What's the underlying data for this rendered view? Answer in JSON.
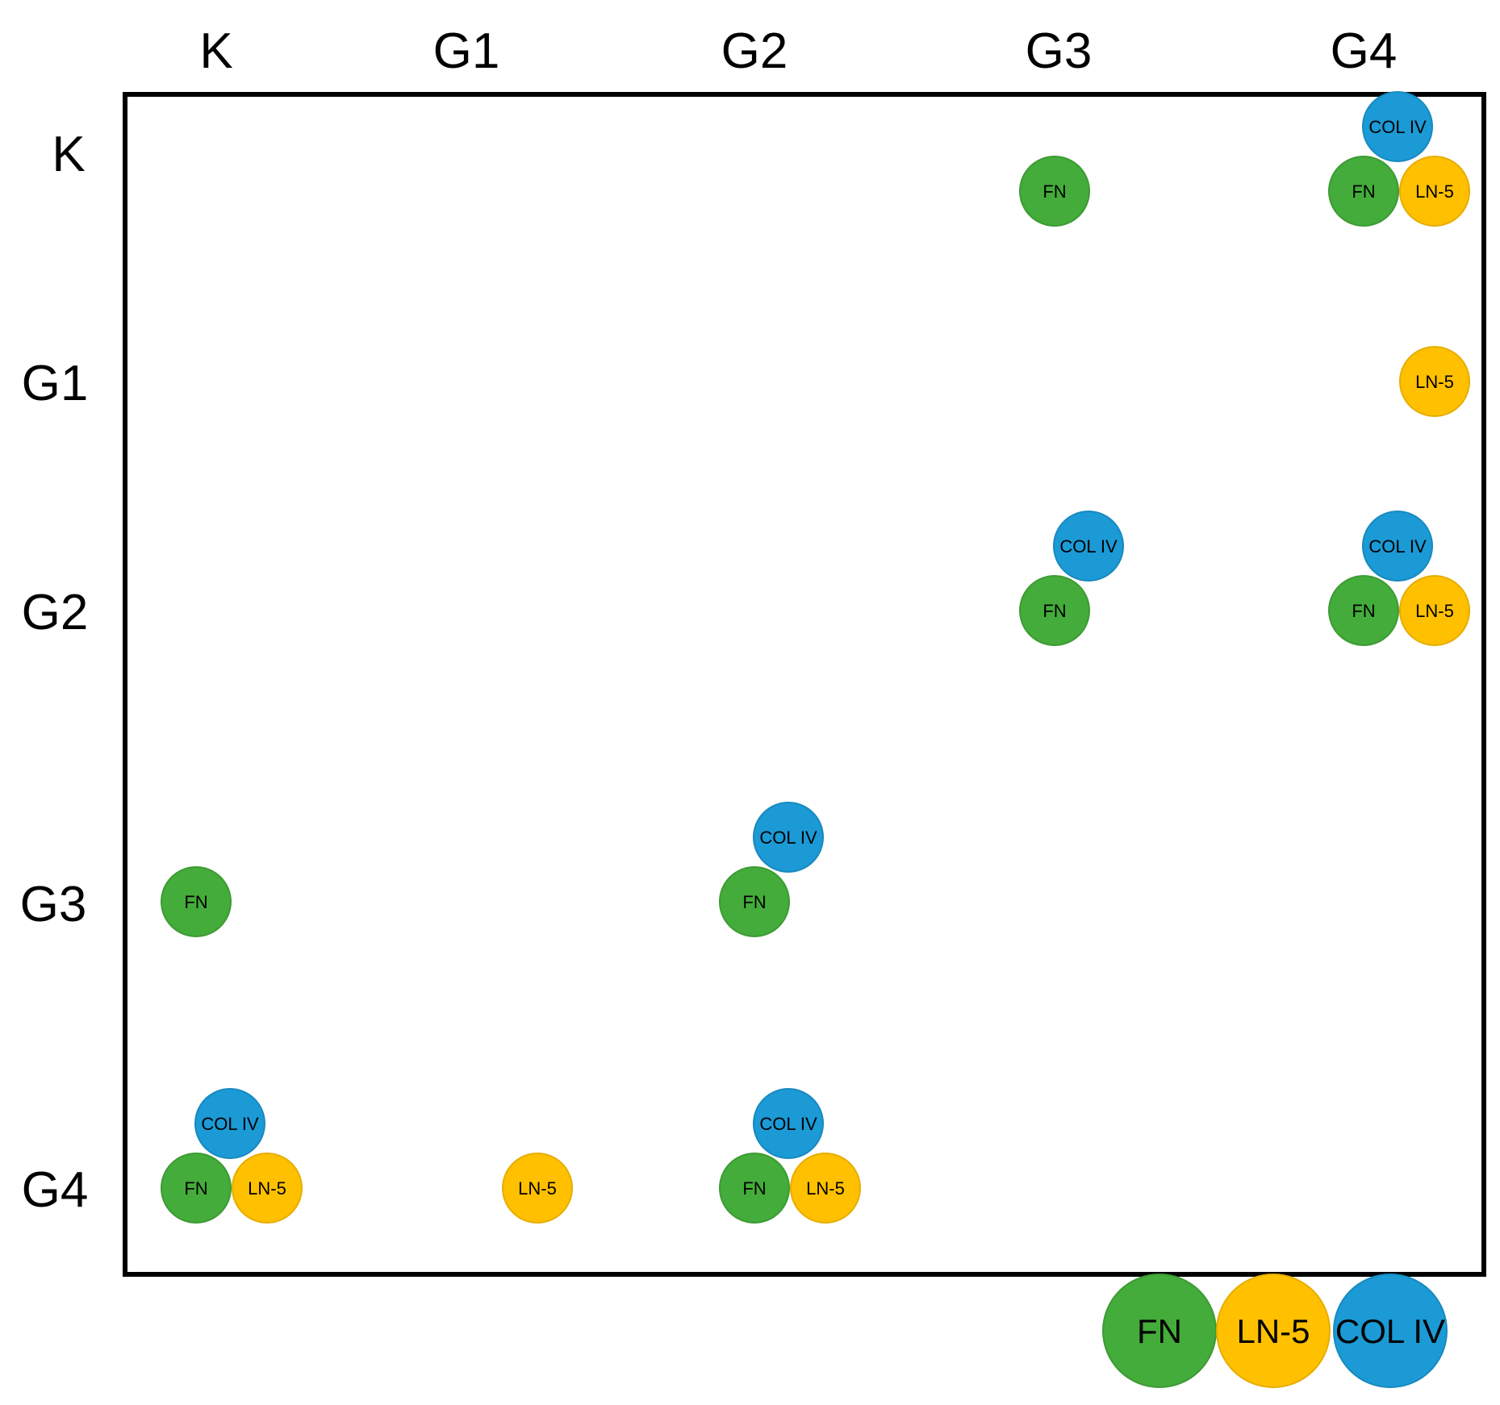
{
  "colors": {
    "FN": "#44ac3a",
    "LN-5": "#ffc000",
    "COL IV": "#1b9ad6",
    "FN_stroke": "#3d9a34",
    "LN-5_stroke": "#e6ad00",
    "COL IV_stroke": "#1889bf"
  },
  "column_labels": [
    "K",
    "G1",
    "G2",
    "G3",
    "G4"
  ],
  "row_labels": [
    "K",
    "G1",
    "G2",
    "G3",
    "G4"
  ],
  "legend": [
    "FN",
    "LN-5",
    "COL IV"
  ],
  "chart_data": {
    "type": "matrix",
    "description_order": "cells listed as row-by-column",
    "rows": [
      "K",
      "G1",
      "G2",
      "G3",
      "G4"
    ],
    "columns": [
      "K",
      "G1",
      "G2",
      "G3",
      "G4"
    ],
    "cells": [
      {
        "row": "K",
        "col": "G3",
        "proteins": [
          "FN"
        ]
      },
      {
        "row": "K",
        "col": "G4",
        "proteins": [
          "FN",
          "LN-5",
          "COL IV"
        ]
      },
      {
        "row": "G1",
        "col": "G4",
        "proteins": [
          "LN-5"
        ]
      },
      {
        "row": "G2",
        "col": "G3",
        "proteins": [
          "FN",
          "COL IV"
        ]
      },
      {
        "row": "G2",
        "col": "G4",
        "proteins": [
          "FN",
          "LN-5",
          "COL IV"
        ]
      },
      {
        "row": "G3",
        "col": "K",
        "proteins": [
          "FN"
        ]
      },
      {
        "row": "G3",
        "col": "G2",
        "proteins": [
          "FN",
          "COL IV"
        ]
      },
      {
        "row": "G4",
        "col": "K",
        "proteins": [
          "FN",
          "LN-5",
          "COL IV"
        ]
      },
      {
        "row": "G4",
        "col": "G1",
        "proteins": [
          "LN-5"
        ]
      },
      {
        "row": "G4",
        "col": "G2",
        "proteins": [
          "FN",
          "LN-5",
          "COL IV"
        ]
      }
    ]
  }
}
